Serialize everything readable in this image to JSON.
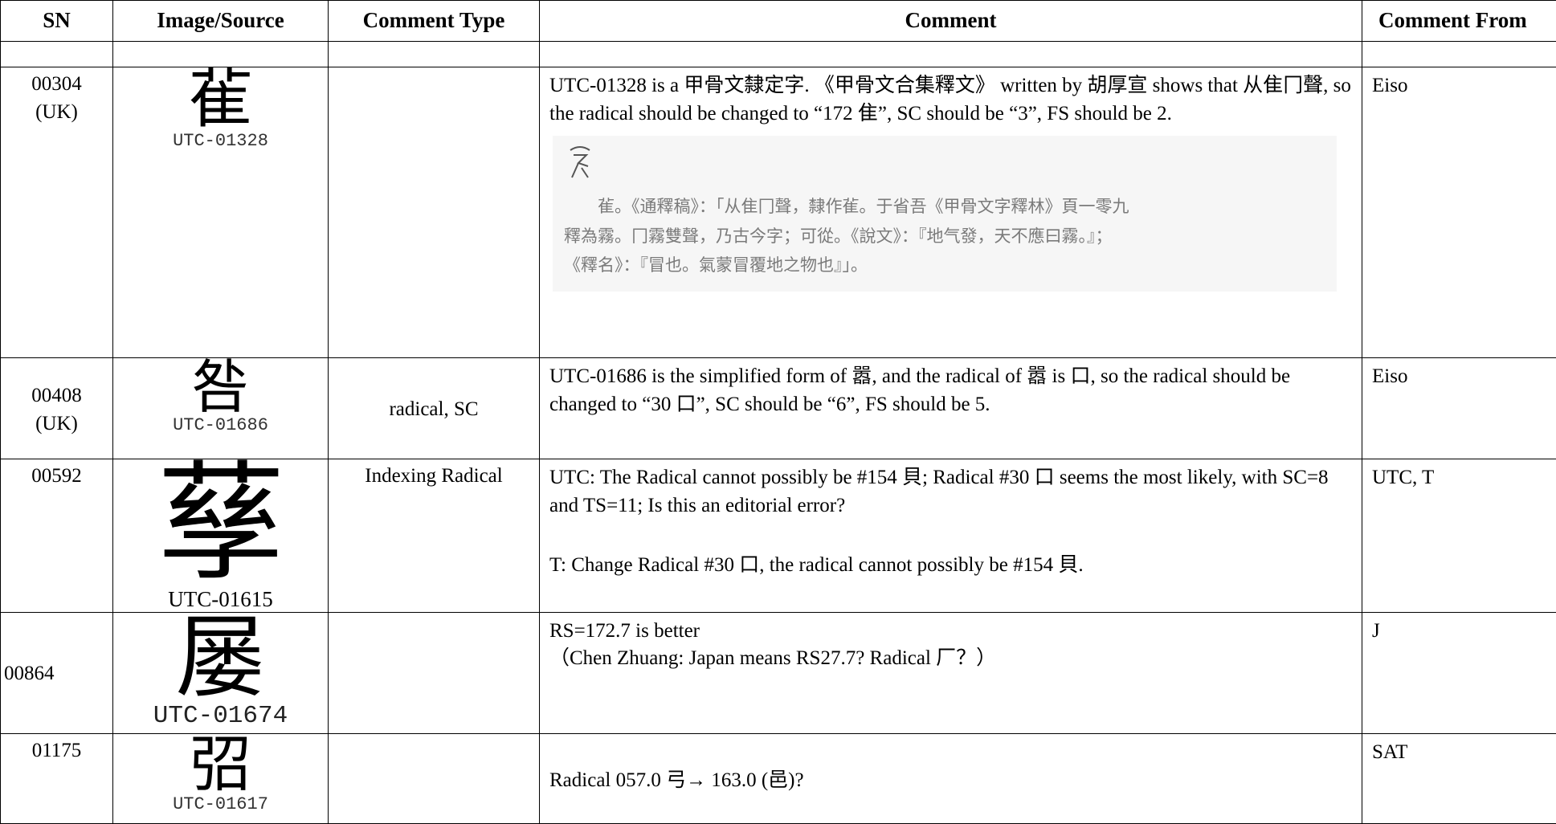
{
  "table": {
    "headers": [
      "SN",
      "Image/Source",
      "Comment Type",
      "Comment",
      "Comment From"
    ],
    "rows": [
      {
        "sn": "00304",
        "sn_note": "(UK)",
        "glyph": "雈",
        "source": "UTC-01328",
        "comment": [
          "UTC-01328 is a 甲骨文隸定字. 《甲骨文合集釋文》 written by 胡厚宣 shows that 从隹冂聲, so the radical should be changed to “172 隹”, SC should be “3”, FS should be 2."
        ],
        "excerpt": [
          "雈。《通釋稿》：「从隹冂聲，隸作雈。于省吾《甲骨文字釋林》頁一零九",
          "釋為霧。冂霧雙聲，乃古今字；可從。《說文》：『地气發，天不應曰霧。』；",
          "《釋名》：『冒也。氣蒙冒覆地之物也』」。"
        ],
        "comment_from": "Eiso"
      },
      {
        "sn": "00408",
        "sn_note": "(UK)",
        "glyph": "咎",
        "source": "UTC-01686",
        "comment_type": "radical, SC",
        "comment": [
          "UTC-01686 is the simplified form of 嚣, and the radical of 嚣 is 口, so the radical should be changed to “30 口”, SC should be “6”, FS should be 5."
        ],
        "comment_from": "Eiso"
      },
      {
        "sn": "00592",
        "glyph": "孶",
        "source": "UTC-01615",
        "comment_type": "Indexing Radical",
        "comment": [
          "UTC: The Radical cannot possibly be #154 貝; Radical #30 口 seems the most likely, with SC=8 and TS=11; Is this an editorial error?",
          "T: Change Radical #30 口, the radical cannot possibly be #154 貝."
        ],
        "comment_from": "UTC, T"
      },
      {
        "sn": "00864",
        "glyph": "屡",
        "source": "UTC-01674",
        "comment": [
          "RS=172.7 is better",
          "（Chen Zhuang: Japan means RS27.7? Radical 厂？）"
        ],
        "comment_from": "J"
      },
      {
        "sn": "01175",
        "glyph": "弨",
        "source": "UTC-01617",
        "comment": [
          "Radical 057.0 弓→ 163.0 (邑)?"
        ],
        "comment_from": "SAT"
      }
    ]
  }
}
